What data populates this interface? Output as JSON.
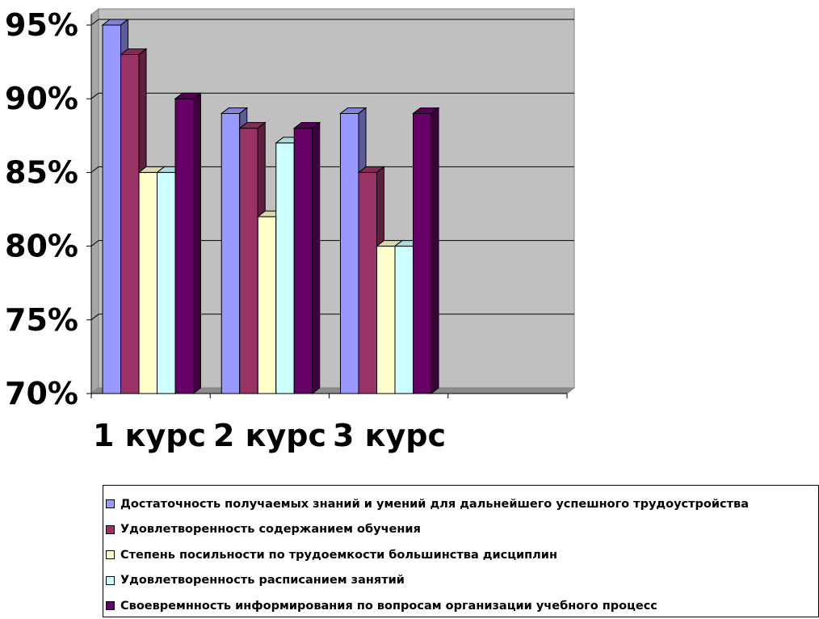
{
  "chart_data": {
    "type": "bar",
    "categories": [
      "1 курс",
      "2 курс",
      "3 курс"
    ],
    "series": [
      {
        "name": "Достаточность получаемых знаний и умений для дальнейшего успешного трудоустройства",
        "values": [
          95,
          89,
          89
        ],
        "color": "#9999ff"
      },
      {
        "name": "Удовлетворенность содержанием обучения",
        "values": [
          93,
          88,
          85
        ],
        "color": "#993366"
      },
      {
        "name": "Степень посильности по трудоемкости большинства дисциплин",
        "values": [
          85,
          82,
          80
        ],
        "color": "#ffffcc"
      },
      {
        "name": "Удовлетворенность расписанием занятий",
        "values": [
          85,
          87,
          80
        ],
        "color": "#ccffff"
      },
      {
        "name": "Своевремнность информирования по вопросам организации учебного процесс",
        "values": [
          90,
          88,
          89
        ],
        "color": "#660066"
      }
    ],
    "yticks": [
      "70%",
      "75%",
      "80%",
      "85%",
      "90%",
      "95%"
    ],
    "ylim": [
      70,
      95
    ],
    "grid": true,
    "three_d": true,
    "plot_background": "#c0c0c0",
    "legend_position": "bottom"
  }
}
